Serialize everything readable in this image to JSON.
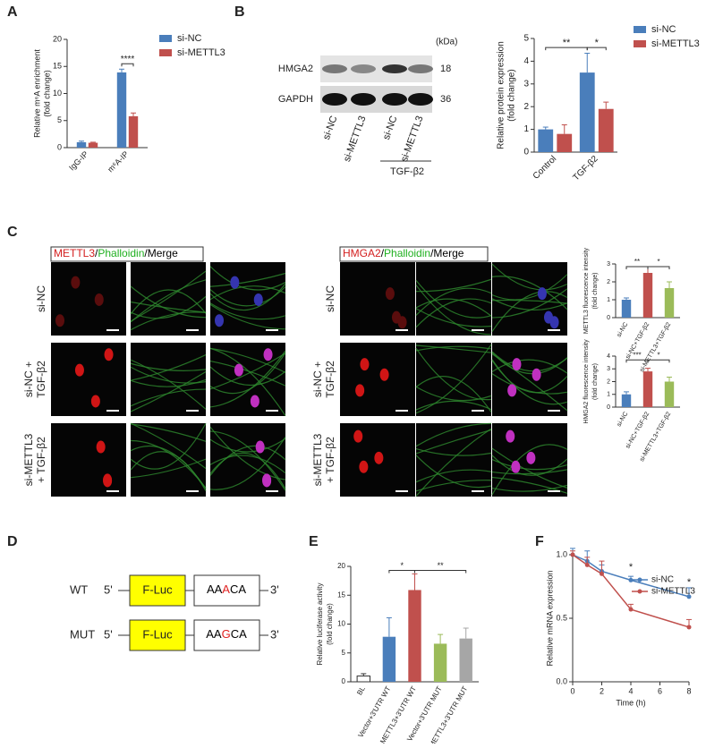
{
  "panel_labels": [
    "A",
    "B",
    "C",
    "D",
    "E",
    "F"
  ],
  "blot": {
    "unit": "(kDa)",
    "proteins": [
      {
        "name": "HMGA2",
        "kda": 18
      },
      {
        "name": "GAPDH",
        "kda": 36
      }
    ],
    "lanes": [
      "si-NC",
      "si-METTL3",
      "si-NC",
      "si-METTL3"
    ],
    "treatment": "TGF-β2"
  },
  "imaging": [
    {
      "stain": [
        {
          "text": "METTL3",
          "color": "#d42020"
        },
        {
          "text": "/",
          "color": "#000000"
        },
        {
          "text": "Phalloidin",
          "color": "#20b020"
        },
        {
          "text": "/Merge",
          "color": "#000000"
        }
      ],
      "rows": [
        [
          "si-NC"
        ],
        [
          "si-NC +",
          "TGF-β2"
        ],
        [
          "si-METTL3",
          "+ TGF-β2"
        ]
      ]
    },
    {
      "stain": [
        {
          "text": "HMGA2",
          "color": "#d42020"
        },
        {
          "text": "/",
          "color": "#000000"
        },
        {
          "text": "Phalloidin",
          "color": "#20b020"
        },
        {
          "text": "/Merge",
          "color": "#000000"
        }
      ],
      "rows": [
        [
          "si-NC"
        ],
        [
          "si-NC +",
          "TGF-β2"
        ],
        [
          "si-METTL3",
          "+ TGF-β2"
        ]
      ]
    }
  ],
  "constructs": [
    {
      "name": "WT",
      "five": "5'",
      "gene": "F-Luc",
      "seq": [
        {
          "text": "AA",
          "color": "#000000"
        },
        {
          "text": "A",
          "color": "#e02020"
        },
        {
          "text": "CA",
          "color": "#000000"
        }
      ],
      "three": "3'"
    },
    {
      "name": "MUT",
      "five": "5'",
      "gene": "F-Luc",
      "seq": [
        {
          "text": "AA",
          "color": "#000000"
        },
        {
          "text": "G",
          "color": "#e02020"
        },
        {
          "text": "CA",
          "color": "#000000"
        }
      ],
      "three": "3'"
    }
  ],
  "chart_data": [
    {
      "type": "bar",
      "ylabel": [
        "Relative m⁶A enrichment",
        "(fold change)"
      ],
      "categories": [
        "IgG-IP",
        "m⁶A-IP"
      ],
      "series": [
        {
          "name": "si-NC",
          "color": "#4a7ebb",
          "values": [
            1.0,
            13.9
          ],
          "errors": [
            0.2,
            0.6
          ]
        },
        {
          "name": "si-METTL3",
          "color": "#c0504d",
          "values": [
            0.9,
            5.8
          ],
          "errors": [
            0.1,
            0.6
          ]
        }
      ],
      "ylim": [
        0,
        20
      ],
      "yticks": [
        0,
        5,
        10,
        15,
        20
      ],
      "annotations": [
        "****"
      ]
    },
    {
      "type": "bar",
      "ylabel": [
        "Relative protein expression",
        "(fold change)"
      ],
      "categories": [
        "Control",
        "TGF-β2"
      ],
      "series": [
        {
          "name": "si-NC",
          "color": "#4a7ebb",
          "values": [
            1.0,
            3.5
          ],
          "errors": [
            0.1,
            0.85
          ]
        },
        {
          "name": "si-METTL3",
          "color": "#c0504d",
          "values": [
            0.8,
            1.9
          ],
          "errors": [
            0.4,
            0.3
          ]
        }
      ],
      "ylim": [
        0,
        5
      ],
      "yticks": [
        0,
        1,
        2,
        3,
        4,
        5
      ],
      "annotations": [
        "**",
        "*"
      ]
    },
    {
      "type": "bar",
      "ylabel": [
        "METTL3 fluorescence intensity",
        "(fold change)"
      ],
      "categories": [
        "si-NC",
        "si-NC+TGF-β2",
        "si-METTL3+TGF-β2"
      ],
      "values": [
        1.0,
        2.5,
        1.65
      ],
      "errors": [
        0.1,
        0.35,
        0.35
      ],
      "colors": [
        "#4a7ebb",
        "#c0504d",
        "#9bbb59"
      ],
      "ylim": [
        0,
        3
      ],
      "yticks": [
        0,
        1,
        2,
        3
      ],
      "annotations": [
        "**",
        "*"
      ]
    },
    {
      "type": "bar",
      "ylabel": [
        "HMGA2 fluorescence intensity",
        "(fold change)"
      ],
      "categories": [
        "si-NC",
        "si-NC+TGF-β2",
        "si-METTL3+TGF-β2"
      ],
      "values": [
        1.0,
        2.8,
        2.0
      ],
      "errors": [
        0.2,
        0.25,
        0.35
      ],
      "colors": [
        "#4a7ebb",
        "#c0504d",
        "#9bbb59"
      ],
      "ylim": [
        0,
        4
      ],
      "yticks": [
        0,
        1,
        2,
        3,
        4
      ],
      "annotations": [
        "***",
        "*"
      ]
    },
    {
      "type": "bar",
      "ylabel": [
        "Relative luciferase activity",
        "(fold change)"
      ],
      "categories": [
        "BL",
        "Vector+3'UTR WT",
        "METTL3+3'UTR WT",
        "Vector+3'UTR MUT",
        "METTL3+3'UTR MUT"
      ],
      "values": [
        1.0,
        7.8,
        15.9,
        6.6,
        7.5
      ],
      "errors": [
        0.4,
        3.3,
        2.8,
        1.6,
        1.8
      ],
      "colors": [
        "#ffffff",
        "#4a7ebb",
        "#c0504d",
        "#9bbb59",
        "#a6a6a6"
      ],
      "ylim": [
        0,
        20
      ],
      "yticks": [
        0,
        5,
        10,
        15,
        20
      ],
      "annotations": [
        "*",
        "**"
      ]
    },
    {
      "type": "line",
      "ylabel": [
        "Relative mRNA expression"
      ],
      "xlabel": "Time (h)",
      "x": [
        0,
        1,
        2,
        4,
        8
      ],
      "series": [
        {
          "name": "si-NC",
          "color": "#4a7ebb",
          "values": [
            1.0,
            0.95,
            0.87,
            0.8,
            0.67
          ],
          "errors": [
            0.05,
            0.08,
            0.05,
            0.03,
            0.07
          ]
        },
        {
          "name": "si-METTL3",
          "color": "#c0504d",
          "values": [
            1.0,
            0.92,
            0.85,
            0.57,
            0.43
          ],
          "errors": [
            0.03,
            0.06,
            0.1,
            0.04,
            0.06
          ]
        }
      ],
      "xlim": [
        0,
        8
      ],
      "xticks": [
        0,
        2,
        4,
        6,
        8
      ],
      "ylim": [
        0,
        1
      ],
      "yticks": [
        {
          "value": 0,
          "label": "0.0"
        },
        0.5,
        {
          "value": 1,
          "label": "1.0"
        }
      ],
      "annotations": [
        "*",
        "*"
      ]
    }
  ]
}
